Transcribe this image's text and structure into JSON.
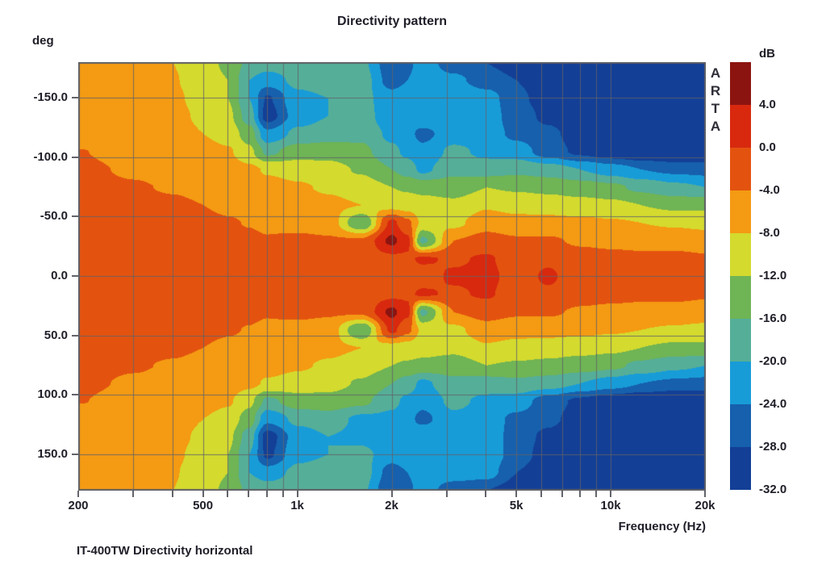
{
  "chart_data": {
    "type": "heatmap",
    "title": "Directivity pattern",
    "ylabel_unit": "deg",
    "xlabel": "Frequency (Hz)",
    "caption": "IT-400TW Directivity horizontal",
    "watermark": "ARTA",
    "colorbar_unit": "dB",
    "colorbar_tick_labels": [
      "4.0",
      "0.0",
      "-4.0",
      "-8.0",
      "-12.0",
      "-16.0",
      "-20.0",
      "-24.0",
      "-28.0",
      "-32.0"
    ],
    "levels_db": [
      4,
      0,
      -4,
      -8,
      -12,
      -16,
      -20,
      -24,
      -28
    ],
    "palette_hex": [
      "#8c1410",
      "#d8290f",
      "#e3530f",
      "#f49a13",
      "#d4da2e",
      "#6fb455",
      "#55ae98",
      "#189cd8",
      "#1660ad",
      "#133f96"
    ],
    "x_range_hz": [
      200,
      20000
    ],
    "y_range_deg": [
      -180,
      180
    ],
    "xtick_labels": [
      {
        "hz": 200,
        "label": "200"
      },
      {
        "hz": 500,
        "label": "500"
      },
      {
        "hz": 1000,
        "label": "1k"
      },
      {
        "hz": 2000,
        "label": "2k"
      },
      {
        "hz": 5000,
        "label": "5k"
      },
      {
        "hz": 10000,
        "label": "10k"
      },
      {
        "hz": 20000,
        "label": "20k"
      }
    ],
    "grid_x_hz": [
      300,
      400,
      500,
      600,
      700,
      800,
      900,
      1000,
      2000,
      3000,
      4000,
      5000,
      6000,
      7000,
      8000,
      9000,
      10000
    ],
    "tick_x_hz": [
      200,
      300,
      400,
      500,
      600,
      700,
      800,
      900,
      1000,
      2000,
      3000,
      4000,
      5000,
      6000,
      7000,
      8000,
      9000,
      10000,
      20000
    ],
    "ytick_labels": [
      {
        "deg": -150,
        "label": "-150.0"
      },
      {
        "deg": -100,
        "label": "-100.0"
      },
      {
        "deg": -50,
        "label": "-50.0"
      },
      {
        "deg": 0,
        "label": "0.0"
      },
      {
        "deg": 50,
        "label": "50.0"
      },
      {
        "deg": 100,
        "label": "100.0"
      },
      {
        "deg": 150,
        "label": "150.0"
      }
    ],
    "grid_y_deg": [
      -150,
      -100,
      -50,
      0,
      50,
      100,
      150
    ],
    "x_hz": [
      200,
      300,
      400,
      500,
      600,
      700,
      800,
      1000,
      1250,
      1600,
      2000,
      2240,
      2500,
      3150,
      4000,
      5000,
      6300,
      8000,
      10000,
      12500,
      16000,
      20000
    ],
    "y_deg": [
      -180,
      -165,
      -150,
      -135,
      -120,
      -105,
      -90,
      -75,
      -60,
      -45,
      -30,
      -15,
      0,
      15,
      30,
      45,
      60,
      75,
      90,
      105,
      120,
      135,
      150,
      165,
      180
    ],
    "values_db": [
      [
        -6,
        -6.5,
        -8,
        -10,
        -13,
        -17,
        -18,
        -17,
        -18,
        -19,
        -27,
        -25,
        -22,
        -26,
        -28,
        -30,
        -33,
        -33,
        -33,
        -33,
        -33,
        -33
      ],
      [
        -6,
        -6.5,
        -7.8,
        -9.5,
        -12,
        -20,
        -22,
        -19,
        -18,
        -18,
        -26,
        -24,
        -22,
        -23,
        -26,
        -28,
        -31,
        -33,
        -33,
        -33,
        -33,
        -33
      ],
      [
        -6,
        -6.5,
        -7.5,
        -9,
        -12,
        -20,
        -28.5,
        -21,
        -20,
        -19,
        -22,
        -21,
        -20,
        -20,
        -22,
        -27,
        -30,
        -33,
        -33,
        -33,
        -33,
        -33
      ],
      [
        -6,
        -6.3,
        -7.2,
        -8.5,
        -11,
        -18,
        -30,
        -22,
        -20,
        -18,
        -23,
        -22,
        -21,
        -21,
        -22,
        -26,
        -29,
        -32,
        -33,
        -33,
        -33,
        -33
      ],
      [
        -5.5,
        -6,
        -6.8,
        -8,
        -9.5,
        -14,
        -23,
        -19,
        -18,
        -17,
        -21,
        -23,
        -25,
        -22,
        -22,
        -25,
        -27,
        -30,
        -32,
        -33,
        -33,
        -33
      ],
      [
        -3.9,
        -5,
        -5.8,
        -6.5,
        -7.5,
        -11,
        -17,
        -14,
        -13.5,
        -15,
        -19,
        -21,
        -23,
        -19,
        -21,
        -22,
        -26,
        -29,
        -31,
        -32,
        -33,
        -33
      ],
      [
        -3.5,
        -4.3,
        -4.8,
        -5.2,
        -6,
        -7,
        -8.5,
        -9.5,
        -10.5,
        -12.5,
        -16,
        -18,
        -21,
        -17,
        -18,
        -17,
        -18,
        -20,
        -22,
        -24,
        -25,
        -25.5
      ],
      [
        -3.2,
        -3.8,
        -4.2,
        -4.6,
        -5.2,
        -5.8,
        -6.5,
        -7.5,
        -8.5,
        -10,
        -12,
        -12.5,
        -13,
        -14,
        -12,
        -12.5,
        -13,
        -14,
        -15,
        -17,
        -19,
        -20
      ],
      [
        -3,
        -3.2,
        -3.6,
        -4,
        -4.4,
        -4.8,
        -5.4,
        -6.2,
        -7,
        -8,
        -9.5,
        -10,
        -10.5,
        -11,
        -8.5,
        -9.5,
        -10,
        -10.5,
        -11,
        -12,
        -13,
        -13
      ],
      [
        -2.8,
        -3,
        -3.2,
        -3.5,
        -3.8,
        -4.1,
        -4.5,
        -5,
        -5.5,
        -16,
        1,
        -3,
        -9,
        -9,
        -5.5,
        -6.5,
        -6.5,
        -7,
        -7.5,
        -8,
        -8.5,
        -9
      ],
      [
        -2.5,
        -2.6,
        -2.8,
        -3,
        -3.2,
        -3.5,
        -3.8,
        -3.3,
        -3.6,
        -3.2,
        5,
        1,
        -17,
        -4,
        -2.5,
        -3.5,
        -3.5,
        -4.5,
        -5,
        -5.5,
        -5.5,
        -6
      ],
      [
        -2.2,
        -2.3,
        -2.4,
        -2.5,
        -2.7,
        -2.8,
        -3,
        -3,
        -3,
        -2.5,
        -1,
        -0.5,
        0.5,
        -0.5,
        0.5,
        -2,
        -0.5,
        -2.5,
        -2.8,
        -3,
        -3,
        -3.5
      ],
      [
        -2,
        -2.1,
        -2.2,
        -2.3,
        -2.4,
        -2.5,
        -2.6,
        -2.7,
        -2.6,
        -2.2,
        -2,
        -1.8,
        -1.5,
        0.5,
        1,
        -1.5,
        0.5,
        -2,
        -2.2,
        -2.4,
        -2.4,
        -2.6
      ],
      [
        -2.2,
        -2.3,
        -2.4,
        -2.5,
        -2.7,
        -2.8,
        -3,
        -3,
        -3,
        -2.5,
        -1,
        -0.5,
        0.5,
        -0.5,
        0.5,
        -2,
        -0.5,
        -2.5,
        -2.8,
        -3,
        -3,
        -3.5
      ],
      [
        -2.5,
        -2.6,
        -2.8,
        -3,
        -3.2,
        -3.5,
        -3.8,
        -3.3,
        -3.6,
        -3.2,
        5,
        1,
        -17,
        -4,
        -2.5,
        -3.5,
        -3.5,
        -4.5,
        -5,
        -5.5,
        -5.5,
        -6
      ],
      [
        -2.8,
        -3,
        -3.2,
        -3.5,
        -3.8,
        -4.1,
        -4.5,
        -5,
        -5.5,
        -16,
        1,
        -3,
        -9,
        -9,
        -5.5,
        -6.5,
        -6.5,
        -7,
        -7.5,
        -8,
        -8.5,
        -9
      ],
      [
        -3,
        -3.2,
        -3.6,
        -4,
        -4.4,
        -4.8,
        -5.4,
        -6.2,
        -7,
        -8,
        -9.5,
        -10,
        -10.5,
        -11,
        -8.5,
        -9.5,
        -10,
        -10.5,
        -11,
        -12,
        -13,
        -13
      ],
      [
        -3.2,
        -3.8,
        -4.2,
        -4.6,
        -5.2,
        -5.8,
        -6.5,
        -7.5,
        -8.5,
        -10,
        -12,
        -12.5,
        -13,
        -14,
        -12,
        -12.5,
        -13,
        -14,
        -15,
        -17,
        -19,
        -20
      ],
      [
        -3.5,
        -4.3,
        -4.8,
        -5.2,
        -6,
        -7,
        -8.5,
        -9.5,
        -10.5,
        -12.5,
        -16,
        -18,
        -21,
        -17,
        -18,
        -17,
        -18,
        -20,
        -22,
        -24,
        -25,
        -25.5
      ],
      [
        -3.9,
        -5,
        -5.8,
        -6.5,
        -7.5,
        -11,
        -17,
        -14,
        -13.5,
        -15,
        -19,
        -21,
        -23,
        -19,
        -21,
        -22,
        -26,
        -29,
        -31,
        -32,
        -33,
        -33
      ],
      [
        -5.5,
        -6,
        -6.8,
        -8,
        -9.5,
        -14,
        -23,
        -19,
        -18,
        -21,
        -21,
        -23,
        -25,
        -21,
        -22,
        -25,
        -27,
        -30,
        -32,
        -33,
        -33,
        -33
      ],
      [
        -6,
        -6.3,
        -7.2,
        -8.5,
        -11,
        -18,
        -30,
        -22,
        -20,
        -21,
        -23,
        -22,
        -21,
        -21,
        -21,
        -26,
        -29,
        -32,
        -33,
        -33,
        -33,
        -33
      ],
      [
        -6,
        -6.5,
        -7.5,
        -9,
        -12,
        -20,
        -29,
        -21,
        -20,
        -19,
        -22,
        -21,
        -20,
        -21,
        -21,
        -26,
        -30,
        -33,
        -33,
        -33,
        -33,
        -33
      ],
      [
        -6,
        -6.5,
        -7.8,
        -9.5,
        -12,
        -20,
        -22,
        -19,
        -18,
        -18,
        -26,
        -24,
        -22,
        -22,
        -22,
        -28,
        -31,
        -33,
        -33,
        -33,
        -33,
        -33
      ],
      [
        -6,
        -6.5,
        -8,
        -10,
        -13,
        -17,
        -18,
        -17,
        -18,
        -19,
        -28,
        -25,
        -22,
        -26,
        -28,
        -30,
        -33,
        -33,
        -33,
        -33,
        -33,
        -33
      ]
    ]
  }
}
